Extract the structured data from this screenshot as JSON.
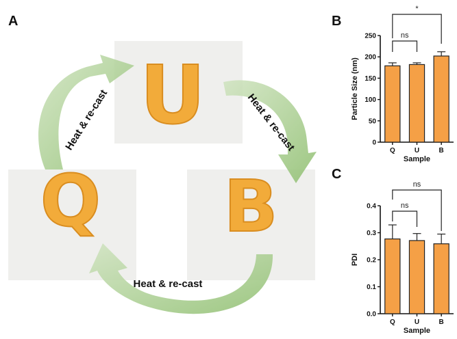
{
  "panels": {
    "a": "A",
    "b": "B",
    "c": "C"
  },
  "photos": {
    "top_letter": "U",
    "left_letter": "Q",
    "right_letter": "B",
    "letter_color": "#f2ab3a",
    "photo_bg": "#efefed"
  },
  "arrows": {
    "label": "Heat & re-cast",
    "color": "#9cc67f"
  },
  "chart_data": [
    {
      "type": "bar",
      "panel": "B",
      "categories": [
        "Q",
        "U",
        "B"
      ],
      "values": [
        179,
        182,
        202
      ],
      "errors": [
        7,
        4,
        10
      ],
      "xlabel": "Sample",
      "ylabel": "Particle Size (nm)",
      "ylim": [
        0,
        250
      ],
      "yticks": [
        "0",
        "50",
        "100",
        "150",
        "200",
        "250"
      ],
      "bar_color": "#f5a046",
      "significance": [
        {
          "from": "Q",
          "to": "U",
          "label": "ns"
        },
        {
          "from": "Q",
          "to": "B",
          "label": "*"
        }
      ]
    },
    {
      "type": "bar",
      "panel": "C",
      "categories": [
        "Q",
        "U",
        "B"
      ],
      "values": [
        0.277,
        0.271,
        0.259
      ],
      "errors": [
        0.052,
        0.026,
        0.036
      ],
      "xlabel": "Sample",
      "ylabel": "PDI",
      "ylim": [
        0,
        0.4
      ],
      "yticks": [
        "0.0",
        "0.1",
        "0.2",
        "0.3",
        "0.4"
      ],
      "bar_color": "#f5a046",
      "significance": [
        {
          "from": "Q",
          "to": "U",
          "label": "ns"
        },
        {
          "from": "Q",
          "to": "B",
          "label": "ns"
        }
      ]
    }
  ]
}
